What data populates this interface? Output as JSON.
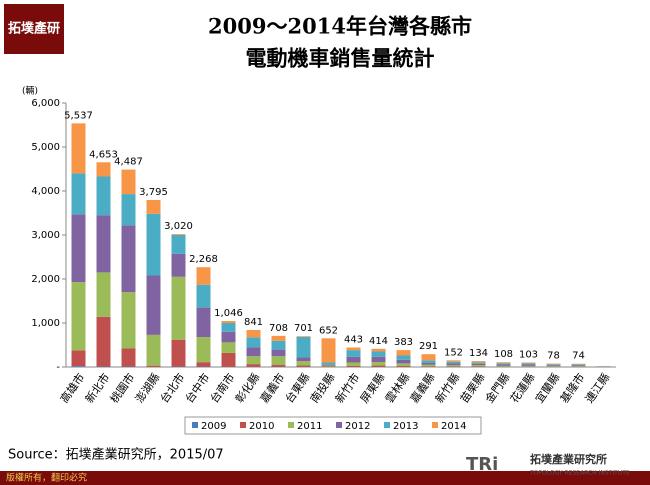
{
  "logo_badge": "拓墣產研",
  "chart_data": {
    "type": "stacked-bar",
    "title": [
      "2009～2014年台灣各縣市",
      "電動機車銷售量統計"
    ],
    "y_label": "(輛)",
    "categories": [
      "高雄市",
      "新北市",
      "桃園市",
      "澎湖縣",
      "台北市",
      "台中市",
      "台南市",
      "彰化縣",
      "嘉義市",
      "台東縣",
      "南投縣",
      "新竹市",
      "屏東縣",
      "雲林縣",
      "嘉義縣",
      "新竹縣",
      "苗栗縣",
      "金門縣",
      "花蓮縣",
      "宜蘭縣",
      "基隆市",
      "連江縣"
    ],
    "series": [
      {
        "name": "2009",
        "color": "#4a7ebb",
        "values": [
          20,
          10,
          10,
          0,
          10,
          10,
          5,
          5,
          5,
          5,
          2,
          3,
          3,
          2,
          2,
          1,
          1,
          1,
          1,
          1,
          1,
          0
        ]
      },
      {
        "name": "2010",
        "color": "#c0504d",
        "values": [
          360,
          1130,
          410,
          30,
          610,
          100,
          315,
          60,
          40,
          30,
          10,
          20,
          30,
          20,
          10,
          10,
          10,
          5,
          5,
          5,
          5,
          0
        ]
      },
      {
        "name": "2011",
        "color": "#9bbb59",
        "values": [
          1550,
          1010,
          1280,
          700,
          1430,
          570,
          240,
          180,
          200,
          100,
          20,
          80,
          80,
          60,
          40,
          30,
          30,
          20,
          20,
          15,
          15,
          5
        ]
      },
      {
        "name": "2012",
        "color": "#8064a2",
        "values": [
          1540,
          1300,
          1520,
          1350,
          520,
          670,
          240,
          200,
          150,
          80,
          20,
          130,
          120,
          80,
          40,
          40,
          30,
          30,
          30,
          20,
          20,
          5
        ]
      },
      {
        "name": "2013",
        "color": "#4bacc6",
        "values": [
          930,
          880,
          710,
          1400,
          430,
          520,
          200,
          230,
          200,
          470,
          50,
          150,
          120,
          100,
          60,
          40,
          30,
          30,
          30,
          20,
          20,
          5
        ]
      },
      {
        "name": "2014",
        "color": "#f79646",
        "values": [
          1137,
          323,
          557,
          315,
          20,
          398,
          46,
          166,
          113,
          16,
          550,
          60,
          61,
          121,
          139,
          31,
          33,
          22,
          17,
          17,
          13,
          5
        ]
      }
    ],
    "totals": [
      5537,
      4653,
      4487,
      3795,
      3020,
      2268,
      1046,
      841,
      708,
      701,
      652,
      443,
      414,
      383,
      291,
      152,
      134,
      108,
      103,
      78,
      74,
      null
    ],
    "total_labels": [
      "5,537",
      "4,653",
      "4,487",
      "3,795",
      "3,020",
      "2,268",
      "1,046",
      "841",
      "708",
      "701",
      "652",
      "443",
      "414",
      "383",
      "291",
      "152",
      "134",
      "108",
      "103",
      "78",
      "74",
      null
    ],
    "ylim": [
      0,
      6000
    ],
    "yticks": [
      {
        "value": 0,
        "label": "-"
      },
      {
        "value": 1000,
        "label": "1,000"
      },
      {
        "value": 2000,
        "label": "2,000"
      },
      {
        "value": 3000,
        "label": "3,000"
      },
      {
        "value": 4000,
        "label": "4,000"
      },
      {
        "value": 5000,
        "label": "5,000"
      },
      {
        "value": 6000,
        "label": "6,000"
      }
    ],
    "grid": false
  },
  "source": "Source：拓墣產業研究所，2015/07",
  "footer": "版權所有，翻印必究",
  "logo": {
    "name": "拓墣產業研究所",
    "mark": "TRi",
    "english": "TOPOLOGY RESEARCH INSTITUTE"
  }
}
